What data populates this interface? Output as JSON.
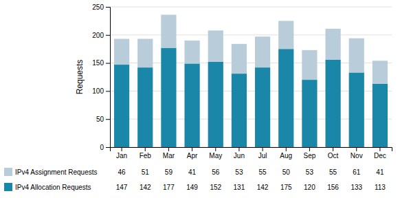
{
  "chart_data": {
    "type": "bar",
    "stacked": true,
    "categories": [
      "Jan",
      "Feb",
      "Mar",
      "Apr",
      "May",
      "Jun",
      "Jul",
      "Aug",
      "Sep",
      "Oct",
      "Nov",
      "Dec"
    ],
    "series": [
      {
        "name": "IPv4 Allocation Requests",
        "color": "#1b87a8",
        "values": [
          147,
          142,
          177,
          149,
          152,
          131,
          142,
          175,
          120,
          156,
          133,
          113
        ]
      },
      {
        "name": "IPv4 Assignment Requests",
        "color": "#b8cdd9",
        "values": [
          46,
          51,
          59,
          41,
          56,
          53,
          55,
          50,
          53,
          55,
          61,
          41
        ]
      }
    ],
    "ylabel": "Requests",
    "ylim": [
      0,
      250
    ],
    "yticks": [
      0,
      50,
      100,
      150,
      200,
      250
    ],
    "grid": true,
    "legend": "bottom",
    "data_labels": true
  }
}
